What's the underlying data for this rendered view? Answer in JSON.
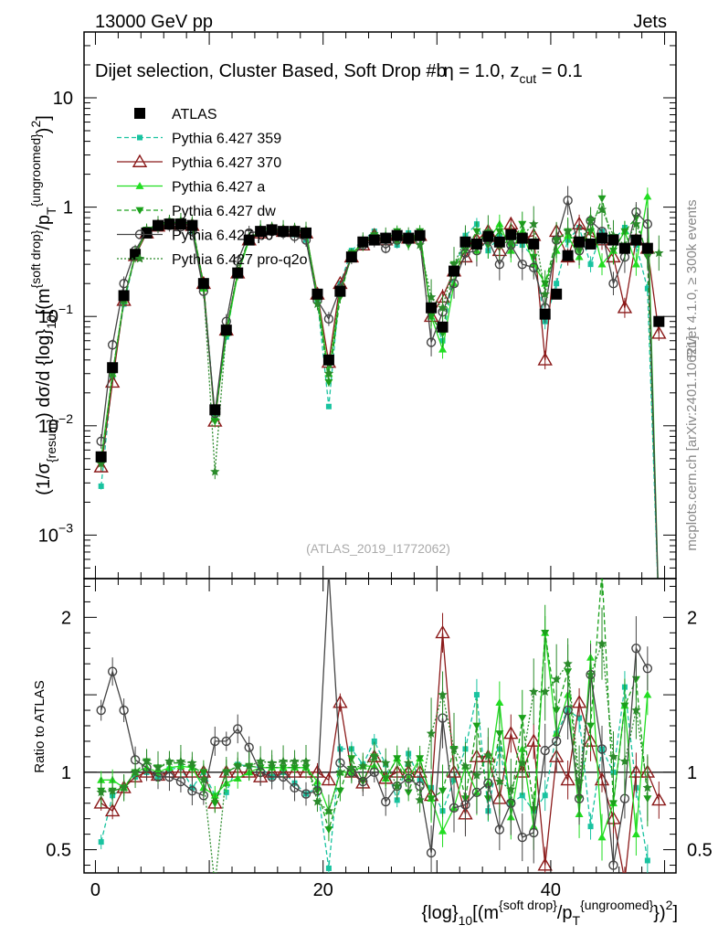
{
  "header": {
    "left": "13000 GeV pp",
    "right": "Jets"
  },
  "side": {
    "rivet": "Rivet 4.1.0, ≥ 300k events",
    "mcplots": "mcplots.cern.ch [arXiv:2401.10621]"
  },
  "watermark": "(ATLAS_2019_I1772062)",
  "colors": {
    "atlas": "#000000",
    "p359": "#19c3a0",
    "p370": "#8b1a1a",
    "pa": "#22dd22",
    "pdw": "#1aa01a",
    "pp0": "#444444",
    "ppro": "#2a8a2a"
  },
  "chart_data": [
    {
      "type": "line",
      "title": "Dijet selection, Cluster Based, Soft Drop #bη = 1.0, z_cut = 0.1",
      "title_parts": {
        "main": "Dijet selection, Cluster Based, Soft Drop #b",
        "eta": "η = 1.0, z",
        "cut": "cut",
        "tail": " = 0.1"
      },
      "ylabel": "(1/σ_{resum}) dσ/d {log}_10[(m^{soft drop}/p_T^{ungroomed})^2]",
      "ylabel_parts": {
        "a": "(1/σ",
        "b": "{resum}",
        "c": ") dσ/d {log}",
        "d": "10",
        "e": "[(m",
        "f": "{soft drop}",
        "g": "/p",
        "h": "T",
        "i": "{ungroomed}",
        "j": ")",
        "k": "2",
        "l": "]"
      },
      "yscale": "log",
      "ylim": [
        0.0004,
        40
      ],
      "yticks": [
        {
          "v": 0.001,
          "b": "10",
          "e": "−3"
        },
        {
          "v": 0.01,
          "b": "10",
          "e": "−2"
        },
        {
          "v": 0.1,
          "b": "10",
          "e": "−1"
        },
        {
          "v": 1,
          "b": "1",
          "e": ""
        },
        {
          "v": 10,
          "b": "10",
          "e": ""
        }
      ],
      "legend_position": "top-left",
      "legend": [
        "ATLAS",
        "Pythia 6.427 359",
        "Pythia 6.427 370",
        "Pythia 6.427 a",
        "Pythia 6.427 dw",
        "Pythia 6.427 p0",
        "Pythia 6.427 pro-q2o"
      ],
      "series": [
        {
          "name": "ATLAS",
          "values": [
            0.0052,
            0.034,
            0.155,
            0.37,
            0.58,
            0.68,
            0.7,
            0.7,
            0.68,
            0.2,
            0.014,
            0.075,
            0.25,
            0.5,
            0.6,
            0.62,
            0.6,
            0.6,
            0.58,
            0.16,
            0.04,
            0.17,
            0.35,
            0.48,
            0.5,
            0.52,
            0.55,
            0.52,
            0.55,
            0.12,
            0.08,
            0.26,
            0.48,
            0.46,
            0.54,
            0.48,
            0.56,
            0.52,
            0.46,
            0.105,
            0.16,
            0.36,
            0.48,
            0.46,
            0.52,
            0.5,
            0.42,
            0.5,
            0.42,
            0.09
          ]
        },
        {
          "name": "Pythia 6.427 359",
          "values": [
            0.0028,
            0.028,
            0.13,
            0.36,
            0.58,
            0.66,
            0.72,
            0.72,
            0.6,
            0.2,
            0.012,
            0.065,
            0.26,
            0.52,
            0.62,
            0.6,
            0.6,
            0.56,
            0.5,
            0.14,
            0.015,
            0.2,
            0.4,
            0.5,
            0.6,
            0.55,
            0.45,
            0.58,
            0.52,
            0.11,
            0.06,
            0.25,
            0.55,
            0.7,
            0.4,
            0.55,
            0.45,
            0.45,
            0.35,
            0.09,
            0.2,
            0.5,
            0.65,
            0.3,
            0.6,
            0.5,
            0.65,
            0.45,
            0.18,
            0.0
          ]
        },
        {
          "name": "Pythia 6.427 370",
          "values": [
            0.0042,
            0.025,
            0.14,
            0.36,
            0.58,
            0.67,
            0.7,
            0.7,
            0.68,
            0.2,
            0.011,
            0.075,
            0.25,
            0.5,
            0.58,
            0.62,
            0.6,
            0.6,
            0.58,
            0.16,
            0.038,
            0.2,
            0.35,
            0.45,
            0.55,
            0.5,
            0.55,
            0.52,
            0.55,
            0.1,
            0.15,
            0.26,
            0.35,
            0.5,
            0.6,
            0.4,
            0.7,
            0.52,
            0.55,
            0.04,
            0.6,
            0.35,
            0.7,
            0.55,
            0.5,
            0.35,
            0.12,
            0.5,
            0.42,
            0.07
          ]
        },
        {
          "name": "Pythia 6.427 a",
          "values": [
            0.005,
            0.03,
            0.14,
            0.37,
            0.6,
            0.68,
            0.72,
            0.73,
            0.7,
            0.18,
            0.012,
            0.07,
            0.24,
            0.5,
            0.62,
            0.64,
            0.62,
            0.62,
            0.6,
            0.15,
            0.03,
            0.17,
            0.35,
            0.5,
            0.52,
            0.5,
            0.6,
            0.5,
            0.6,
            0.1,
            0.05,
            0.2,
            0.5,
            0.4,
            0.5,
            0.7,
            0.4,
            0.6,
            0.3,
            0.2,
            0.4,
            0.55,
            0.35,
            0.8,
            0.3,
            0.4,
            0.6,
            0.3,
            1.25,
            0.0
          ]
        },
        {
          "name": "Pythia 6.427 dw",
          "values": [
            0.0045,
            0.03,
            0.14,
            0.37,
            0.62,
            0.7,
            0.74,
            0.74,
            0.7,
            0.2,
            0.011,
            0.075,
            0.26,
            0.52,
            0.62,
            0.64,
            0.62,
            0.62,
            0.6,
            0.14,
            0.025,
            0.15,
            0.38,
            0.45,
            0.55,
            0.5,
            0.6,
            0.45,
            0.6,
            0.1,
            0.07,
            0.3,
            0.4,
            0.6,
            0.45,
            0.6,
            0.45,
            0.7,
            0.35,
            0.2,
            0.5,
            0.6,
            0.4,
            0.6,
            1.2,
            0.4,
            0.6,
            0.8,
            0.35,
            0.0
          ]
        },
        {
          "name": "Pythia 6.427 p0",
          "values": [
            0.0072,
            0.055,
            0.2,
            0.4,
            0.6,
            0.66,
            0.68,
            0.66,
            0.6,
            0.17,
            0.013,
            0.09,
            0.32,
            0.58,
            0.6,
            0.6,
            0.58,
            0.54,
            0.5,
            0.14,
            0.095,
            0.18,
            0.35,
            0.45,
            0.5,
            0.42,
            0.5,
            0.5,
            0.5,
            0.058,
            0.11,
            0.2,
            0.38,
            0.4,
            0.5,
            0.3,
            0.45,
            0.3,
            0.28,
            0.12,
            0.5,
            1.15,
            0.4,
            0.75,
            0.6,
            0.2,
            0.35,
            0.9,
            0.7,
            0.0
          ]
        },
        {
          "name": "Pythia 6.427 pro-q2o",
          "values": [
            0.0045,
            0.03,
            0.14,
            0.37,
            0.62,
            0.7,
            0.75,
            0.75,
            0.72,
            0.19,
            0.0038,
            0.075,
            0.26,
            0.52,
            0.64,
            0.66,
            0.64,
            0.64,
            0.62,
            0.13,
            0.03,
            0.17,
            0.36,
            0.5,
            0.55,
            0.55,
            0.5,
            0.55,
            0.45,
            0.15,
            0.12,
            0.3,
            0.5,
            0.45,
            0.6,
            0.45,
            0.5,
            0.55,
            0.7,
            0.16,
            0.5,
            0.6,
            0.45,
            0.75,
            0.95,
            0.55,
            0.45,
            0.7,
            0.38,
            0.38
          ]
        }
      ]
    },
    {
      "type": "line",
      "title": "",
      "ylabel": "Ratio to ATLAS",
      "ylim": [
        0.35,
        2.25
      ],
      "yticks": [
        {
          "v": 0.5,
          "label": "0.5"
        },
        {
          "v": 1,
          "label": "1"
        },
        {
          "v": 2,
          "label": "2"
        }
      ],
      "xlabel": "{log}_10[(m^{soft drop}/p_T^{ungroomed})^2]",
      "xlabel_parts": {
        "a": "{log}",
        "b": "10",
        "c": "[(m",
        "d": "{soft drop}",
        "e": "/p",
        "f": "T",
        "g": "{ungroomed}",
        "h": "})",
        "i": "2",
        "j": "]"
      },
      "xlim": [
        -1,
        51
      ],
      "xticks": [
        0,
        20,
        40
      ],
      "x": [
        0.5,
        1.5,
        2.5,
        3.5,
        4.5,
        5.5,
        6.5,
        7.5,
        8.5,
        9.5,
        10.5,
        11.5,
        12.5,
        13.5,
        14.5,
        15.5,
        16.5,
        17.5,
        18.5,
        19.5,
        20.5,
        21.5,
        22.5,
        23.5,
        24.5,
        25.5,
        26.5,
        27.5,
        28.5,
        29.5,
        30.5,
        31.5,
        32.5,
        33.5,
        34.5,
        35.5,
        36.5,
        37.5,
        38.5,
        39.5,
        40.5,
        41.5,
        42.5,
        43.5,
        44.5,
        45.5,
        46.5,
        47.5,
        48.5,
        49.5
      ],
      "series": [
        {
          "name": "Pythia 6.427 359",
          "values": [
            0.55,
            0.85,
            0.9,
            0.97,
            1.0,
            0.97,
            1.02,
            1.03,
            0.9,
            1.0,
            0.85,
            0.87,
            1.05,
            1.04,
            1.03,
            0.97,
            1.0,
            0.93,
            0.86,
            0.9,
            0.38,
            1.15,
            1.15,
            1.05,
            1.2,
            1.05,
            0.82,
            1.12,
            0.95,
            0.9,
            0.75,
            0.95,
            1.15,
            1.5,
            0.75,
            1.15,
            0.8,
            0.85,
            0.75,
            0.85,
            1.25,
            1.4,
            1.35,
            0.65,
            1.15,
            1.0,
            1.55,
            0.9,
            0.43,
            null
          ]
        },
        {
          "name": "Pythia 6.427 370",
          "values": [
            0.8,
            0.75,
            0.9,
            0.97,
            1.0,
            0.98,
            1.0,
            1.0,
            1.0,
            1.0,
            0.8,
            1.0,
            1.0,
            1.0,
            0.97,
            1.0,
            1.0,
            1.0,
            1.0,
            1.0,
            0.95,
            1.45,
            1.0,
            0.93,
            1.1,
            0.96,
            1.0,
            1.0,
            1.0,
            0.85,
            1.9,
            1.0,
            0.73,
            1.1,
            1.1,
            0.83,
            1.25,
            1.0,
            1.2,
            0.4,
            1.1,
            0.95,
            1.45,
            1.2,
            0.95,
            0.7,
            0.3,
            1.0,
            1.0,
            0.82
          ]
        },
        {
          "name": "Pythia 6.427 a",
          "values": [
            0.95,
            0.95,
            0.9,
            1.0,
            1.03,
            1.0,
            1.03,
            1.04,
            1.03,
            0.9,
            0.85,
            0.93,
            0.96,
            1.0,
            1.03,
            1.03,
            1.03,
            1.03,
            1.03,
            0.94,
            0.75,
            1.0,
            1.0,
            1.04,
            1.04,
            0.96,
            1.09,
            0.96,
            1.09,
            0.83,
            0.62,
            0.77,
            1.04,
            0.87,
            0.93,
            1.45,
            0.71,
            1.15,
            0.65,
            1.9,
            1.25,
            1.5,
            0.73,
            1.74,
            0.58,
            0.8,
            1.43,
            0.6,
            1.5,
            null
          ]
        },
        {
          "name": "Pythia 6.427 dw",
          "values": [
            0.88,
            0.88,
            0.9,
            1.0,
            1.07,
            1.03,
            1.06,
            1.06,
            1.03,
            1.0,
            0.8,
            1.0,
            1.04,
            1.04,
            1.03,
            1.03,
            1.03,
            1.03,
            1.03,
            0.88,
            0.63,
            0.88,
            1.09,
            0.94,
            1.1,
            0.96,
            1.09,
            0.87,
            1.09,
            0.83,
            0.88,
            1.15,
            0.83,
            1.3,
            0.83,
            1.25,
            0.8,
            1.35,
            0.76,
            1.9,
            1.4,
            1.65,
            0.83,
            1.3,
            2.3,
            0.8,
            1.43,
            1.6,
            0.83,
            null
          ]
        },
        {
          "name": "Pythia 6.427 p0",
          "values": [
            1.4,
            1.65,
            1.4,
            1.08,
            1.03,
            0.97,
            0.97,
            0.94,
            0.88,
            0.85,
            1.2,
            1.2,
            1.28,
            1.16,
            1.0,
            0.97,
            0.97,
            0.9,
            0.86,
            0.88,
            2.3,
            1.06,
            1.0,
            0.94,
            1.0,
            0.81,
            0.91,
            0.96,
            0.91,
            0.48,
            1.35,
            0.77,
            0.79,
            0.87,
            0.93,
            0.63,
            0.8,
            0.58,
            0.61,
            1.14,
            1.2,
            1.4,
            0.83,
            1.63,
            1.15,
            0.4,
            0.83,
            1.8,
            1.67,
            null
          ]
        },
        {
          "name": "Pythia 6.427 pro-q2o",
          "values": [
            0.87,
            0.88,
            0.9,
            1.0,
            1.07,
            1.03,
            1.07,
            1.07,
            1.06,
            0.95,
            0.27,
            1.0,
            1.04,
            1.04,
            1.07,
            1.06,
            1.07,
            1.07,
            1.07,
            0.81,
            0.75,
            1.0,
            1.03,
            1.04,
            1.1,
            1.06,
            0.91,
            1.06,
            0.82,
            1.25,
            1.5,
            1.15,
            1.04,
            0.98,
            1.11,
            0.94,
            0.89,
            1.06,
            1.52,
            1.52,
            1.6,
            1.7,
            0.94,
            1.63,
            1.83,
            1.1,
            1.07,
            1.4,
            0.9,
            null
          ]
        }
      ]
    }
  ]
}
